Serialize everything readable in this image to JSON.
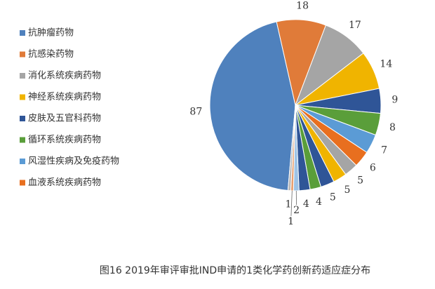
{
  "chart_data": {
    "type": "pie",
    "title": "图16 2019年审评审批IND申请的1类化学药创新药适应症分布",
    "categories": [
      "抗肿瘤药物",
      "抗感染药物",
      "消化系统疾病药物",
      "神经系统疾病药物",
      "皮肤及五官科药物",
      "循环系统疾病药物",
      "风湿性疾病及免疫药物",
      "血液系统疾病药物",
      null,
      null,
      null,
      null,
      null,
      null,
      null,
      null
    ],
    "values": [
      87,
      18,
      17,
      14,
      9,
      8,
      7,
      6,
      5,
      5,
      5,
      4,
      4,
      2,
      1,
      1
    ],
    "colors": [
      "#4f81bd",
      "#e07b39",
      "#a5a5a5",
      "#f0b400",
      "#2f5597",
      "#5a9e3a",
      "#5b9bd5",
      "#e86f1f",
      "#a5a5a5",
      "#f0b400",
      "#2f5597",
      "#5a9e3a",
      "#2f5597",
      "#9dc3e6",
      "#e8a070",
      "#b8b8b8"
    ]
  }
}
